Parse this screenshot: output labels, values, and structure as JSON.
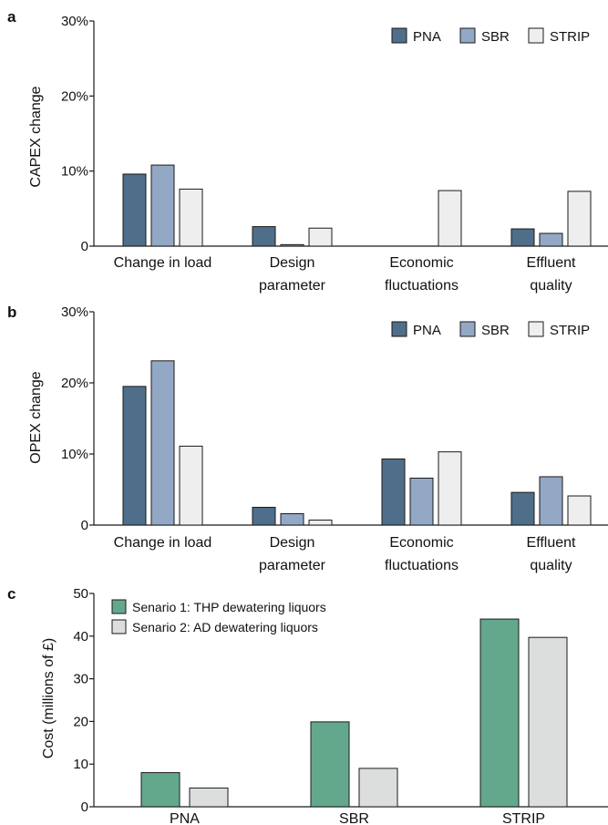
{
  "colors": {
    "PNA": "#4f6e89",
    "SBR": "#93a8c5",
    "STRIP": "#eeeeee",
    "senario1": "#63a88d",
    "senario2": "#dcdddd"
  },
  "chart_data": [
    {
      "panel": "a",
      "type": "bar",
      "ylabel": "CAPEX change",
      "ylim": [
        0,
        30
      ],
      "yticks": [
        "0",
        "10%",
        "20%",
        "30%"
      ],
      "categories": [
        "Change in load",
        "Design parameter",
        "Economic fluctuations",
        "Effluent quality"
      ],
      "category_lines": [
        [
          "Change in load"
        ],
        [
          "Design",
          "parameter"
        ],
        [
          "Economic",
          "fluctuations"
        ],
        [
          "Effluent",
          "quality"
        ]
      ],
      "legend_position": "top-right",
      "series": [
        {
          "name": "PNA",
          "values": [
            9.6,
            2.6,
            0,
            2.3
          ]
        },
        {
          "name": "SBR",
          "values": [
            10.8,
            0.2,
            0,
            1.7
          ]
        },
        {
          "name": "STRIP",
          "values": [
            7.6,
            2.4,
            7.4,
            7.3
          ]
        }
      ]
    },
    {
      "panel": "b",
      "type": "bar",
      "ylabel": "OPEX change",
      "ylim": [
        0,
        30
      ],
      "yticks": [
        "0",
        "10%",
        "20%",
        "30%"
      ],
      "categories": [
        "Change in load",
        "Design parameter",
        "Economic fluctuations",
        "Effluent quality"
      ],
      "category_lines": [
        [
          "Change in load"
        ],
        [
          "Design",
          "parameter"
        ],
        [
          "Economic",
          "fluctuations"
        ],
        [
          "Effluent",
          "quality"
        ]
      ],
      "legend_position": "top-right",
      "series": [
        {
          "name": "PNA",
          "values": [
            19.5,
            2.5,
            9.3,
            4.6
          ]
        },
        {
          "name": "SBR",
          "values": [
            23.1,
            1.6,
            6.6,
            6.8
          ]
        },
        {
          "name": "STRIP",
          "values": [
            11.1,
            0.7,
            10.3,
            4.1
          ]
        }
      ]
    },
    {
      "panel": "c",
      "type": "bar",
      "ylabel": "Cost (millions of £)",
      "ylim": [
        0,
        50
      ],
      "yticks": [
        "0",
        "10",
        "20",
        "30",
        "40",
        "50"
      ],
      "categories": [
        "PNA",
        "SBR",
        "STRIP"
      ],
      "legend_position": "top-left",
      "series": [
        {
          "name": "Senario 1: THP dewatering liquors",
          "values": [
            8.0,
            19.9,
            44.0
          ]
        },
        {
          "name": "Senario 2: AD dewatering liquors",
          "values": [
            4.4,
            9.0,
            39.7
          ]
        }
      ]
    }
  ]
}
